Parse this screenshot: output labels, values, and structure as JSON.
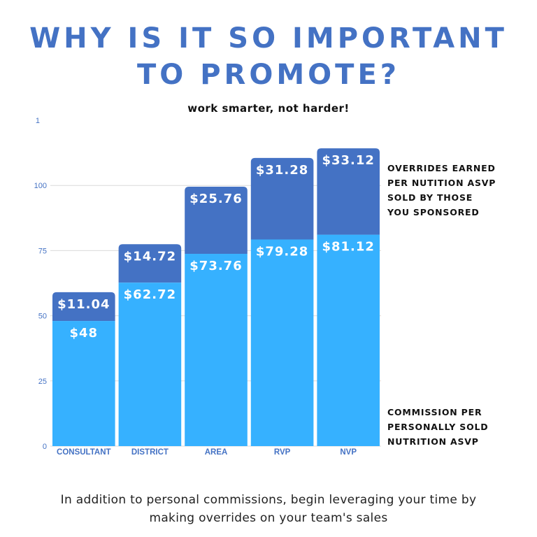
{
  "title_lines": [
    "WHY IS IT SO IMPORTANT",
    "TO PROMOTE?"
  ],
  "subtitle": "work smarter, not harder!",
  "legend": {
    "overrides": [
      "OVERRIDES EARNED",
      "PER NUTITION ASVP",
      "SOLD BY THOSE",
      "YOU SPONSORED"
    ],
    "commission": [
      "COMMISSION PER",
      "PERSONALLY SOLD",
      "NUTRITION ASVP"
    ]
  },
  "footer_lines": [
    "In addition to personal commissions, begin leveraging your time by",
    "making overrides on your team's sales"
  ],
  "colors": {
    "title": "#4472c4",
    "commission": "#36b1ff",
    "overrides": "#4472c4",
    "axis_text": "#4472c4",
    "grid": "#d9d9d9"
  },
  "chart_data": {
    "type": "bar",
    "stacked": true,
    "categories": [
      "CONSULTANT",
      "DISTRICT",
      "AREA",
      "RVP",
      "NVP"
    ],
    "series": [
      {
        "values": [
          48,
          62.72,
          73.76,
          79.28,
          81.12
        ],
        "labels": [
          "$48",
          "$62.72",
          "$73.76",
          "$79.28",
          "$81.12"
        ]
      },
      {
        "values": [
          11.04,
          14.72,
          25.76,
          31.28,
          33.12
        ],
        "labels": [
          "$11.04",
          "$14.72",
          "$25.76",
          "$31.28",
          "$33.12"
        ]
      }
    ],
    "y_ticks": [
      0,
      25,
      50,
      75,
      100
    ],
    "y_tick_labels": [
      "0",
      "25",
      "50",
      "75",
      "100"
    ],
    "y_top_label": "1",
    "ylim": [
      0,
      125
    ],
    "grid": true
  }
}
